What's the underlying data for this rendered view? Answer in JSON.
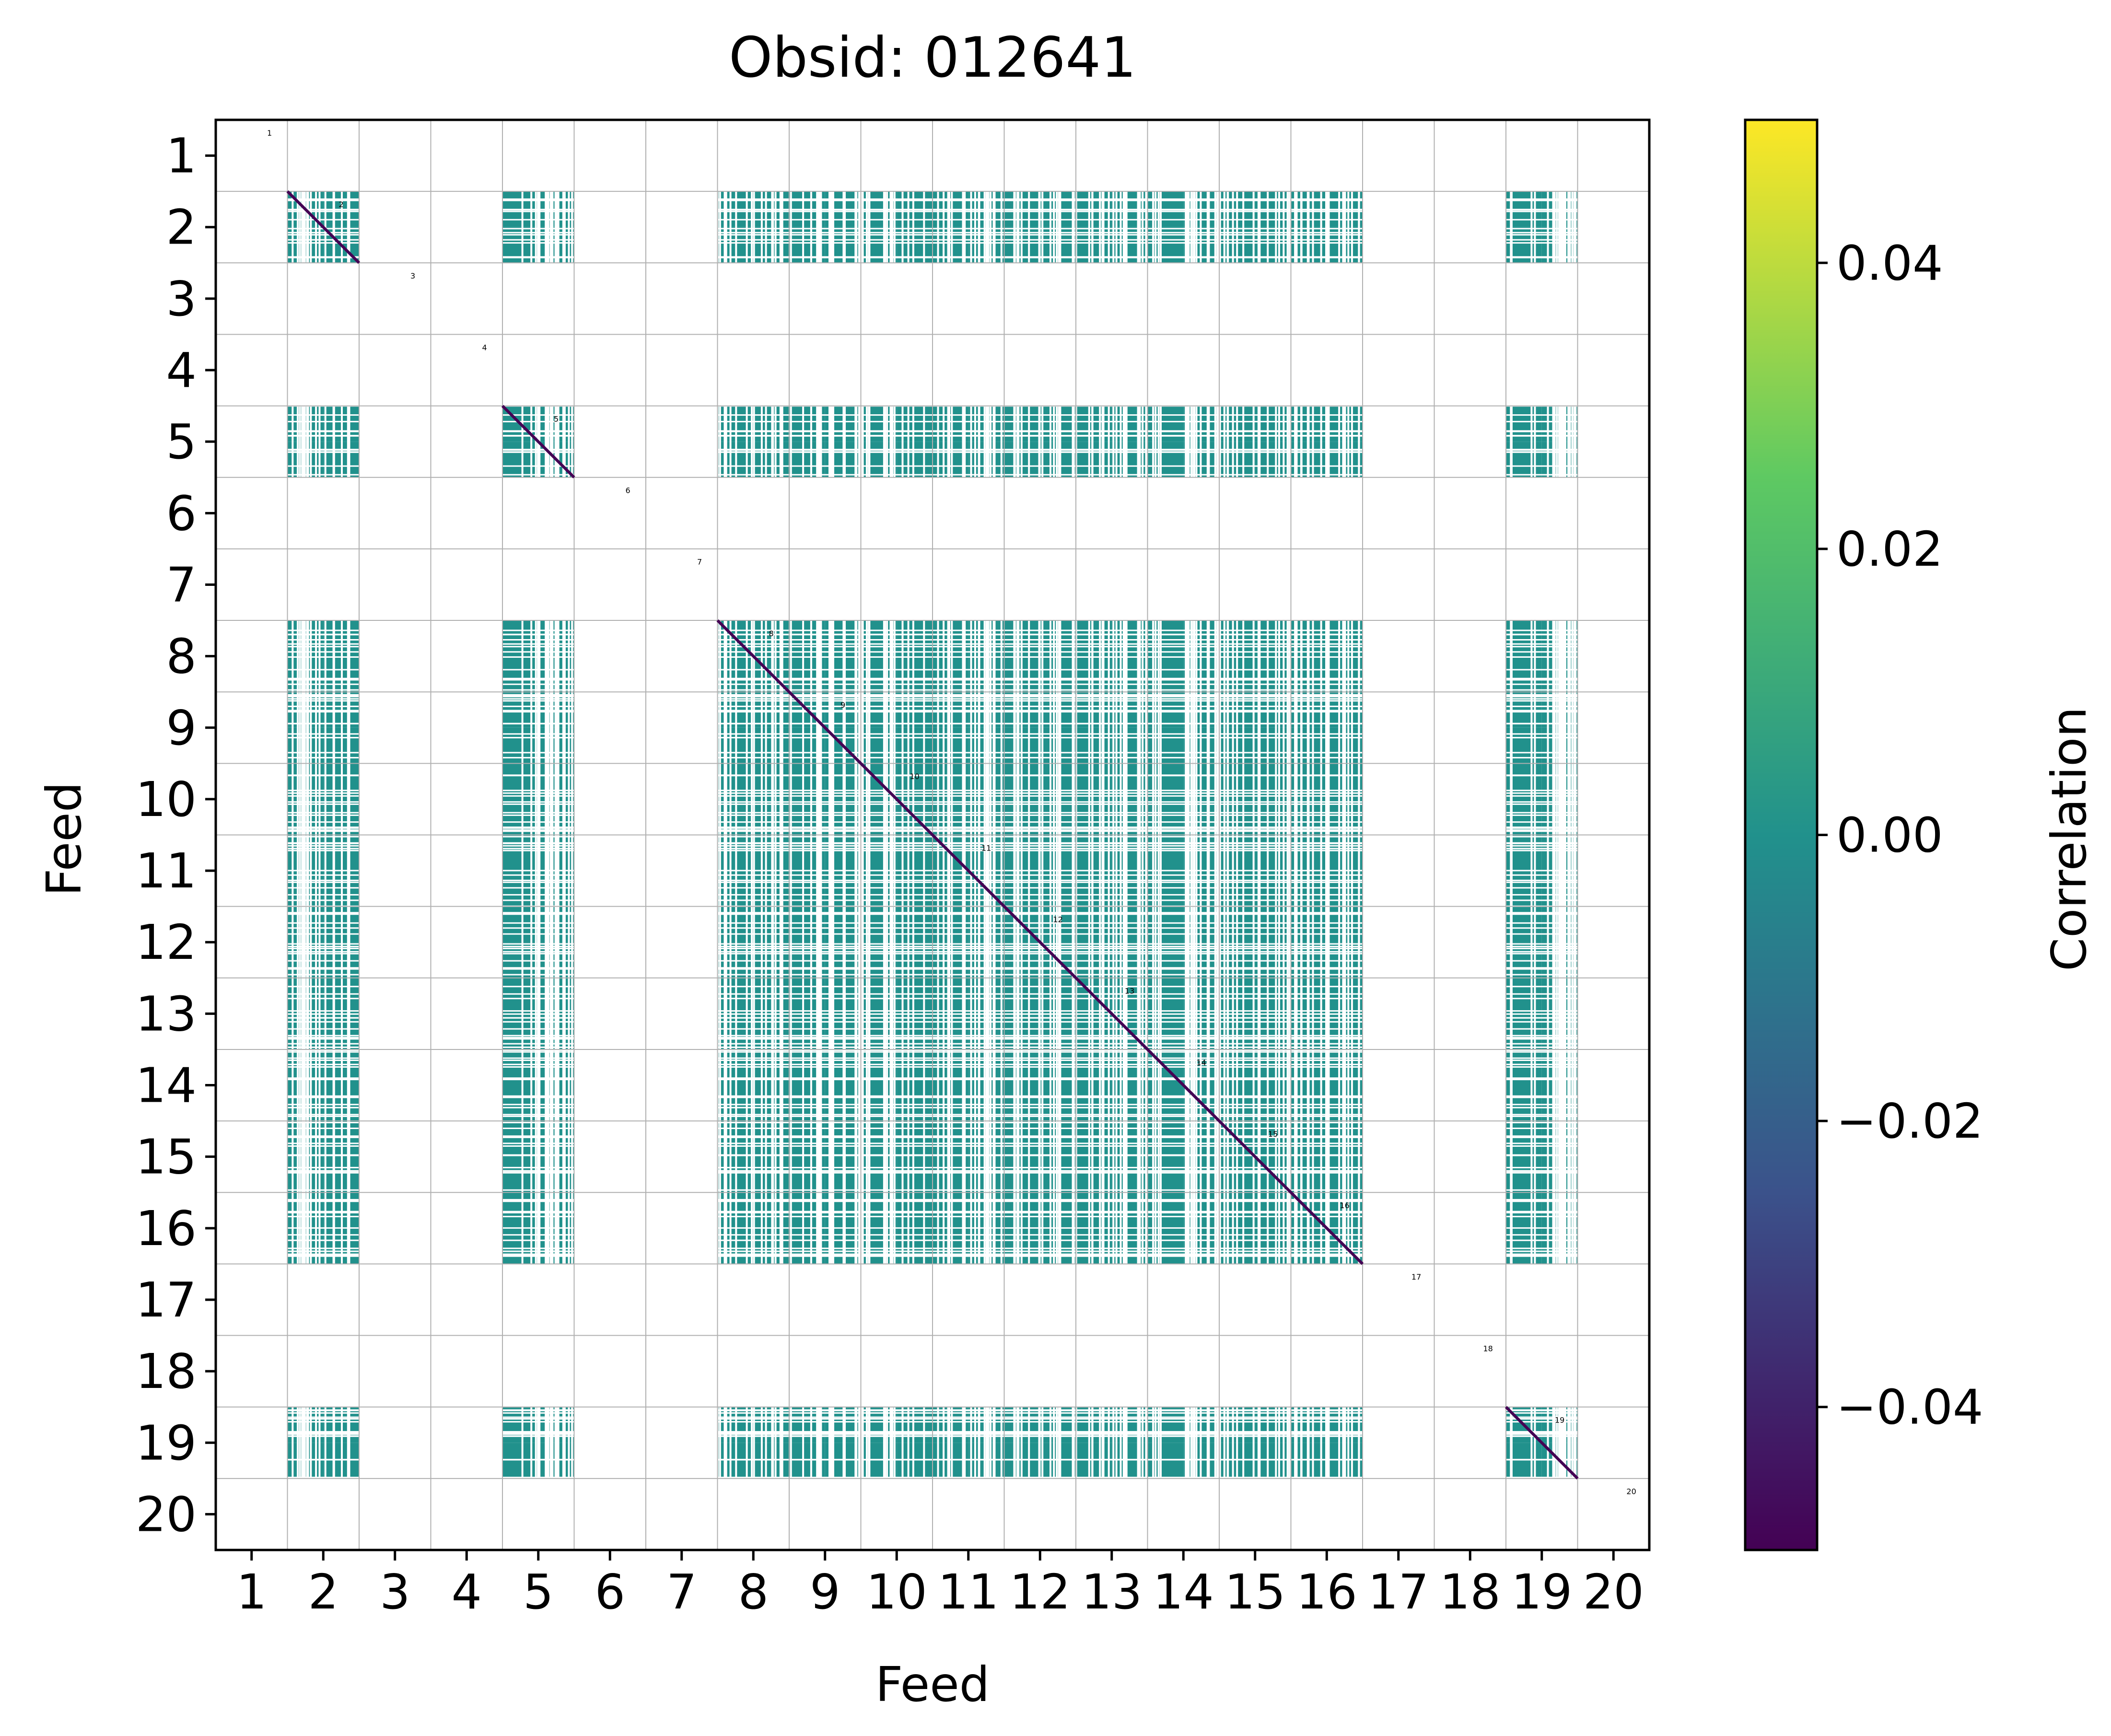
{
  "chart_data": {
    "type": "heatmap",
    "title": "Obsid: 012641",
    "xlabel": "Feed",
    "ylabel": "Feed",
    "x_ticks": [
      "1",
      "2",
      "3",
      "4",
      "5",
      "6",
      "7",
      "8",
      "9",
      "10",
      "11",
      "12",
      "13",
      "14",
      "15",
      "16",
      "17",
      "18",
      "19",
      "20"
    ],
    "y_ticks": [
      "1",
      "2",
      "3",
      "4",
      "5",
      "6",
      "7",
      "8",
      "9",
      "10",
      "11",
      "12",
      "13",
      "14",
      "15",
      "16",
      "17",
      "18",
      "19",
      "20"
    ],
    "feed_labels": [
      "1",
      "2",
      "3",
      "4",
      "5",
      "6",
      "7",
      "8",
      "9",
      "10",
      "11",
      "12",
      "13",
      "14",
      "15",
      "16",
      "17",
      "18",
      "19",
      "20"
    ],
    "active_feeds": [
      2,
      5,
      8,
      9,
      10,
      11,
      12,
      13,
      14,
      15,
      16,
      19
    ],
    "fill_value": 0.0,
    "diagonal_value": -0.05,
    "grid": true,
    "colorbar": {
      "label": "Correlation",
      "range": [
        -0.05,
        0.05
      ],
      "ticks": [
        -0.04,
        -0.02,
        0.0,
        0.02,
        0.04
      ],
      "tick_labels": [
        "−0.04",
        "−0.02",
        "0.00",
        "0.02",
        "0.04"
      ],
      "colormap": "viridis",
      "stops": [
        "#440154",
        "#3b528b",
        "#21918c",
        "#5ec962",
        "#fde725"
      ]
    },
    "fill_color": "#21918c",
    "diagonal_color": "#440154"
  }
}
